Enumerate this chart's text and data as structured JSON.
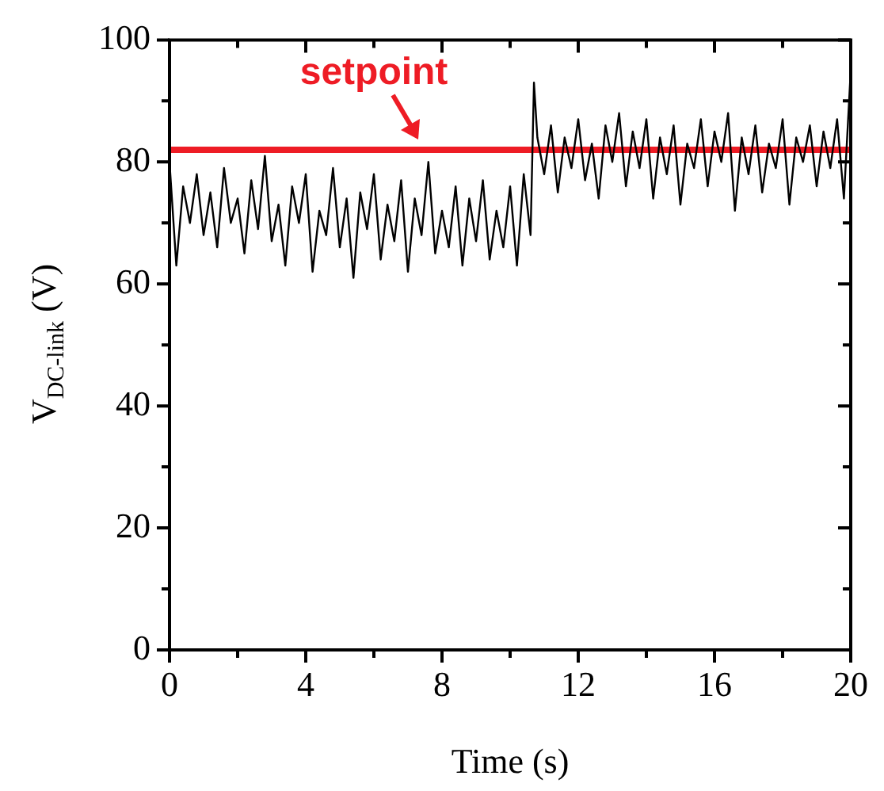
{
  "chart_data": {
    "type": "line",
    "xlabel": "Time (s)",
    "ylabel": "V$_{DC-link}$ (V)",
    "xlim": [
      0,
      20
    ],
    "xticks": [
      0,
      {
        "value": 2,
        "label": null
      },
      4,
      {
        "value": 6,
        "label": null
      },
      8,
      {
        "value": 10,
        "label": null
      },
      12,
      {
        "value": 14,
        "label": null
      },
      16,
      {
        "value": 18,
        "label": null
      },
      20
    ],
    "ylim": [
      0,
      100
    ],
    "yticks": [
      0,
      {
        "value": 10,
        "label": null
      },
      20,
      {
        "value": 30,
        "label": null
      },
      40,
      {
        "value": 50,
        "label": null
      },
      60,
      {
        "value": 70,
        "label": null
      },
      80,
      {
        "value": 90,
        "label": null
      },
      100
    ],
    "grid": false,
    "legend": false,
    "marker": "none",
    "line_style": "solid",
    "ref_lines": [
      {
        "axis": "y",
        "value": 82,
        "label": "setpoint",
        "color": "#ee1c25"
      }
    ],
    "series": [
      {
        "color": "#000000",
        "x": [
          0,
          0.2,
          0.4,
          0.6,
          0.8,
          1.0,
          1.2,
          1.4,
          1.6,
          1.8,
          2.0,
          2.2,
          2.4,
          2.6,
          2.8,
          3.0,
          3.2,
          3.4,
          3.6,
          3.8,
          4.0,
          4.2,
          4.4,
          4.6,
          4.8,
          5.0,
          5.2,
          5.4,
          5.6,
          5.8,
          6.0,
          6.2,
          6.4,
          6.6,
          6.8,
          7.0,
          7.2,
          7.4,
          7.6,
          7.8,
          8.0,
          8.2,
          8.4,
          8.6,
          8.8,
          9.0,
          9.2,
          9.4,
          9.6,
          9.8,
          10.0,
          10.2,
          10.4,
          10.6,
          10.7,
          10.8,
          11.0,
          11.2,
          11.4,
          11.6,
          11.8,
          12.0,
          12.2,
          12.4,
          12.6,
          12.8,
          13.0,
          13.2,
          13.4,
          13.6,
          13.8,
          14.0,
          14.2,
          14.4,
          14.6,
          14.8,
          15.0,
          15.2,
          15.4,
          15.6,
          15.8,
          16.0,
          16.2,
          16.4,
          16.6,
          16.8,
          17.0,
          17.2,
          17.4,
          17.6,
          17.8,
          18.0,
          18.2,
          18.4,
          18.6,
          18.8,
          19.0,
          19.2,
          19.4,
          19.6,
          19.8,
          20.0
        ],
        "values": [
          80,
          63,
          76,
          70,
          78,
          68,
          75,
          66,
          79,
          70,
          74,
          65,
          77,
          69,
          81,
          67,
          73,
          63,
          76,
          70,
          78,
          62,
          72,
          68,
          79,
          66,
          74,
          61,
          75,
          69,
          78,
          64,
          73,
          67,
          77,
          62,
          74,
          68,
          80,
          65,
          72,
          66,
          76,
          63,
          74,
          67,
          77,
          64,
          72,
          66,
          76,
          63,
          78,
          68,
          93,
          84,
          78,
          86,
          75,
          84,
          79,
          87,
          77,
          83,
          74,
          86,
          80,
          88,
          76,
          85,
          79,
          87,
          74,
          84,
          78,
          86,
          73,
          83,
          79,
          87,
          76,
          85,
          80,
          88,
          72,
          84,
          78,
          86,
          75,
          83,
          79,
          87,
          73,
          84,
          80,
          86,
          76,
          85,
          79,
          87,
          74,
          95
        ]
      }
    ]
  }
}
